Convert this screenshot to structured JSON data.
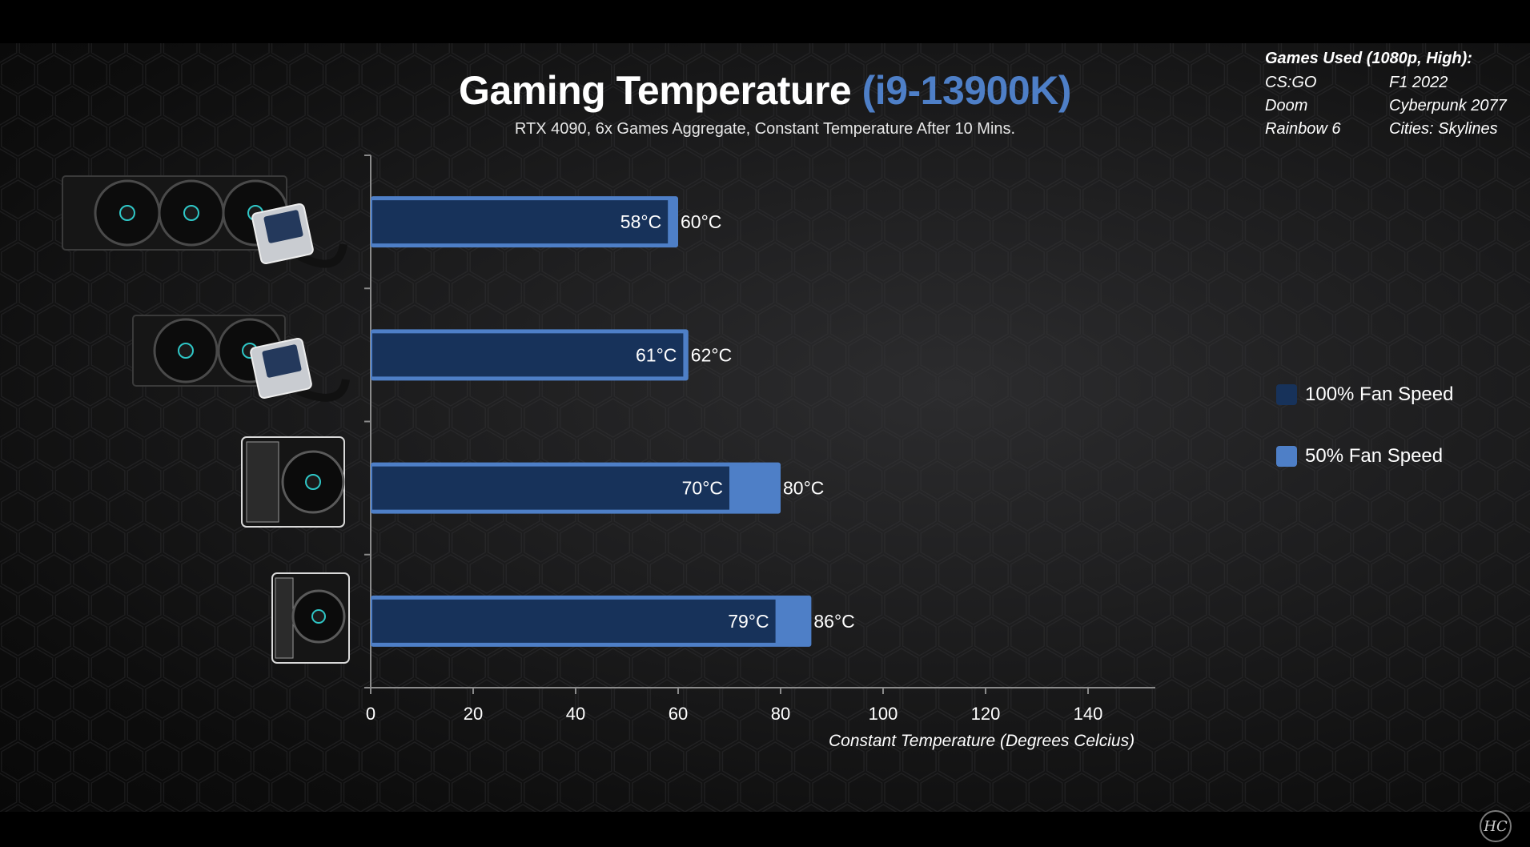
{
  "title": "Gaming Temperature",
  "title_accent": "(i9-13900K)",
  "subtitle": "RTX 4090, 6x Games Aggregate, Constant Temperature After 10 Mins.",
  "games": {
    "heading": "Games Used (1080p, High):",
    "rows": [
      [
        "CS:GO",
        "F1 2022"
      ],
      [
        "Doom",
        "Cyberpunk 2077"
      ],
      [
        "Rainbow 6",
        "Cities: Skylines"
      ]
    ]
  },
  "legend": [
    {
      "label": "100% Fan Speed",
      "color": "#17325a"
    },
    {
      "label": "50% Fan Speed",
      "color": "#4e7fc7"
    }
  ],
  "chart_data": {
    "type": "bar",
    "orientation": "horizontal",
    "categories": [
      "360mm AIO liquid cooler",
      "240mm AIO liquid cooler",
      "Dual-tower air cooler",
      "Single-tower air cooler"
    ],
    "series": [
      {
        "name": "100% Fan Speed",
        "values": [
          58,
          61,
          70,
          79
        ],
        "labels": [
          "58°C",
          "61°C",
          "70°C",
          "79°C"
        ],
        "color": "#17325a"
      },
      {
        "name": "50% Fan Speed",
        "values": [
          60,
          62,
          80,
          86
        ],
        "labels": [
          "60°C",
          "62°C",
          "80°C",
          "86°C"
        ],
        "color": "#4e7fc7"
      }
    ],
    "xlim": [
      0,
      150
    ],
    "xticks": [
      0,
      20,
      40,
      60,
      80,
      100,
      120,
      140
    ],
    "xlabel": "Constant Temperature (Degrees Celcius)",
    "ylabel": "",
    "grid": false,
    "legend_position": "right"
  },
  "watermark": "HC"
}
